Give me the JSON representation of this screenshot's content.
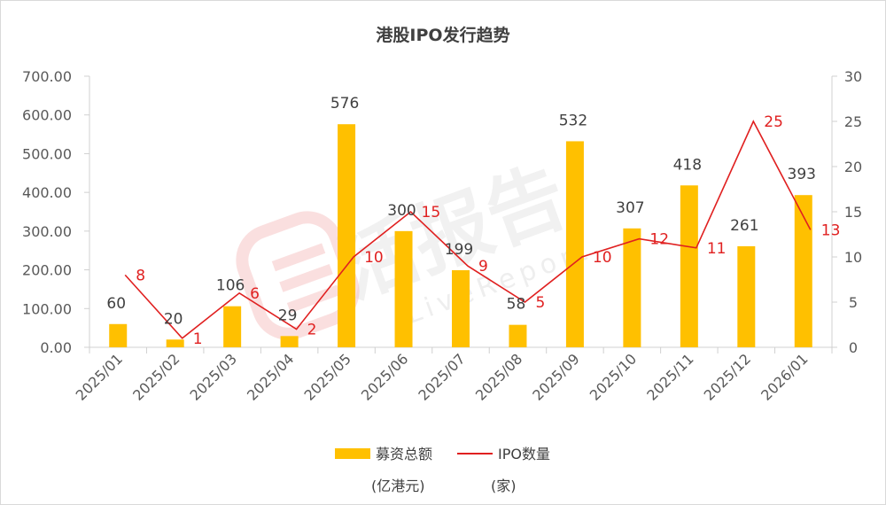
{
  "chart_data": {
    "type": "bar",
    "title": "港股IPO发行趋势",
    "categories": [
      "2025/01",
      "2025/02",
      "2025/03",
      "2025/04",
      "2025/05",
      "2025/06",
      "2025/07",
      "2025/08",
      "2025/09",
      "2025/10",
      "2025/11",
      "2025/12",
      "2026/01"
    ],
    "series": [
      {
        "name": "募资总额",
        "unit": "(亿港元)",
        "type": "bar",
        "axis": "left",
        "color": "#ffc000",
        "values": [
          60,
          20,
          106,
          29,
          576,
          300,
          199,
          58,
          532,
          307,
          418,
          261,
          393
        ]
      },
      {
        "name": "IPO数量",
        "unit": "(家)",
        "type": "line",
        "axis": "right",
        "color": "#e02020",
        "values": [
          8,
          1,
          6,
          2,
          10,
          15,
          9,
          5,
          10,
          12,
          11,
          25,
          13
        ]
      }
    ],
    "y_left": {
      "ylim": [
        0,
        700
      ],
      "ticks": [
        "0.00",
        "100.00",
        "200.00",
        "300.00",
        "400.00",
        "500.00",
        "600.00",
        "700.00"
      ]
    },
    "y_right": {
      "ylim": [
        0,
        30
      ],
      "ticks": [
        "0",
        "5",
        "10",
        "15",
        "20",
        "25",
        "30"
      ]
    },
    "grid": false,
    "legend": "bottom"
  },
  "watermark": {
    "main": "活报告",
    "sub": "LiveReport"
  }
}
